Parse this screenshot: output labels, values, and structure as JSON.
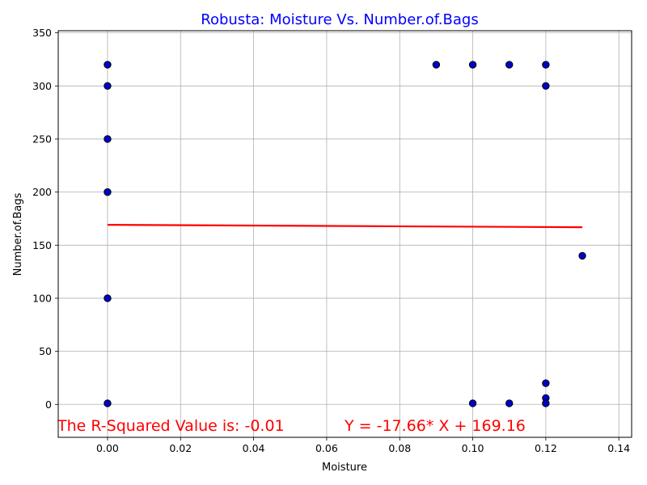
{
  "chart_data": {
    "type": "scatter",
    "title": "Robusta: Moisture Vs. Number.of.Bags",
    "title_color": "#0000ff",
    "xlabel": "Moisture",
    "ylabel": "Number.of.Bags",
    "xlim": [
      -0.0135,
      0.1435
    ],
    "ylim": [
      -31,
      352
    ],
    "xticks": [
      0.0,
      0.02,
      0.04,
      0.06,
      0.08,
      0.1,
      0.12,
      0.14
    ],
    "xtick_labels": [
      "0.00",
      "0.02",
      "0.04",
      "0.06",
      "0.08",
      "0.10",
      "0.12",
      "0.14"
    ],
    "yticks": [
      0,
      50,
      100,
      150,
      200,
      250,
      300,
      350
    ],
    "ytick_labels": [
      "0",
      "50",
      "100",
      "150",
      "200",
      "250",
      "300",
      "350"
    ],
    "grid": true,
    "point_color": "#0000cc",
    "point_edge_color": "#000000",
    "points": [
      {
        "x": 0.0,
        "y": 320
      },
      {
        "x": 0.0,
        "y": 300
      },
      {
        "x": 0.0,
        "y": 250
      },
      {
        "x": 0.0,
        "y": 200
      },
      {
        "x": 0.0,
        "y": 100
      },
      {
        "x": 0.0,
        "y": 1
      },
      {
        "x": 0.09,
        "y": 320
      },
      {
        "x": 0.1,
        "y": 320
      },
      {
        "x": 0.11,
        "y": 320
      },
      {
        "x": 0.12,
        "y": 320
      },
      {
        "x": 0.12,
        "y": 300
      },
      {
        "x": 0.13,
        "y": 140
      },
      {
        "x": 0.12,
        "y": 20
      },
      {
        "x": 0.12,
        "y": 6
      },
      {
        "x": 0.12,
        "y": 1
      },
      {
        "x": 0.1,
        "y": 1
      },
      {
        "x": 0.11,
        "y": 1
      }
    ],
    "fit_line": {
      "color": "#ff0000",
      "slope": -17.66,
      "intercept": 169.16,
      "x_range": [
        0.0,
        0.13
      ]
    },
    "annotations": [
      {
        "text": "The R-Squared Value is: -0.01",
        "color": "#ff0000"
      },
      {
        "text": "Y = -17.66* X + 169.16",
        "color": "#ff0000"
      }
    ]
  }
}
